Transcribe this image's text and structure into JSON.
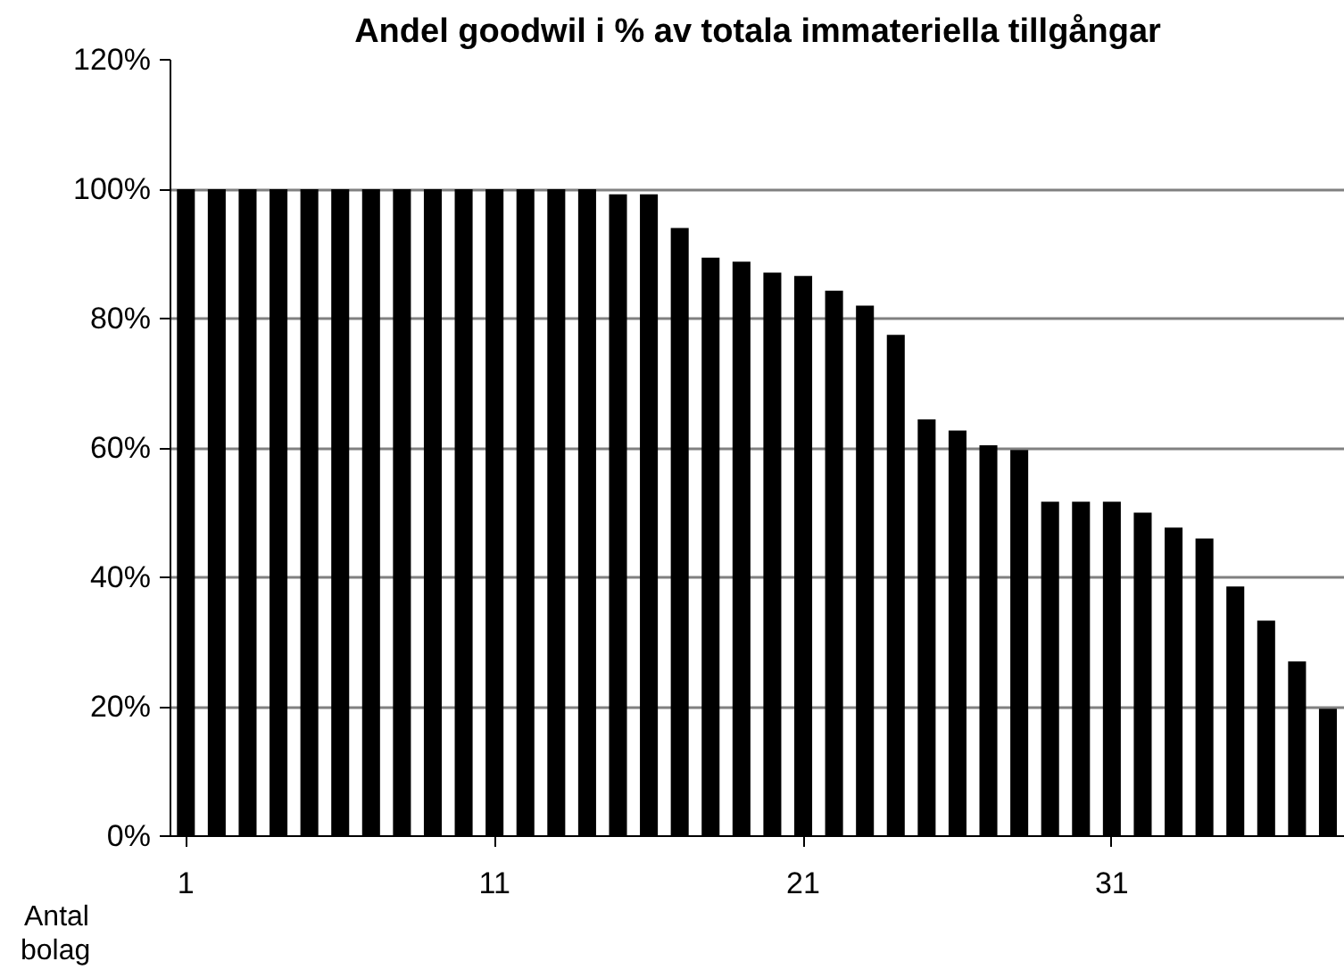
{
  "chart_data": {
    "type": "bar",
    "title": "Andel goodwil i % av totala immateriella tillgångar",
    "xlabel": "Antal bolag",
    "categories": [
      "1",
      null,
      null,
      null,
      null,
      null,
      null,
      null,
      null,
      null,
      "11",
      null,
      null,
      null,
      null,
      null,
      null,
      null,
      null,
      null,
      "21",
      null,
      null,
      null,
      null,
      null,
      null,
      null,
      null,
      null,
      "31",
      null,
      null,
      null,
      null,
      null,
      null,
      null
    ],
    "values": [
      100,
      100,
      100,
      100,
      100,
      100,
      100,
      100,
      100,
      100,
      100,
      100,
      100,
      100,
      99.2,
      99.2,
      94,
      89.4,
      88.8,
      87.1,
      86.6,
      84.3,
      82,
      77.5,
      64.4,
      62.7,
      60.4,
      59.7,
      51.7,
      51.7,
      51.7,
      50,
      47.7,
      46,
      38.6,
      33.3,
      27,
      19.7
    ],
    "color": "#000000",
    "ylim": [
      0,
      120
    ],
    "yticks": [
      {
        "value": 0,
        "label": "0%"
      },
      {
        "value": 20,
        "label": "20%"
      },
      {
        "value": 40,
        "label": "40%"
      },
      {
        "value": 60,
        "label": "60%"
      },
      {
        "value": 80,
        "label": "80%"
      },
      {
        "value": 100,
        "label": "100%"
      },
      {
        "value": 120,
        "label": "120%"
      }
    ],
    "grid": "y"
  }
}
